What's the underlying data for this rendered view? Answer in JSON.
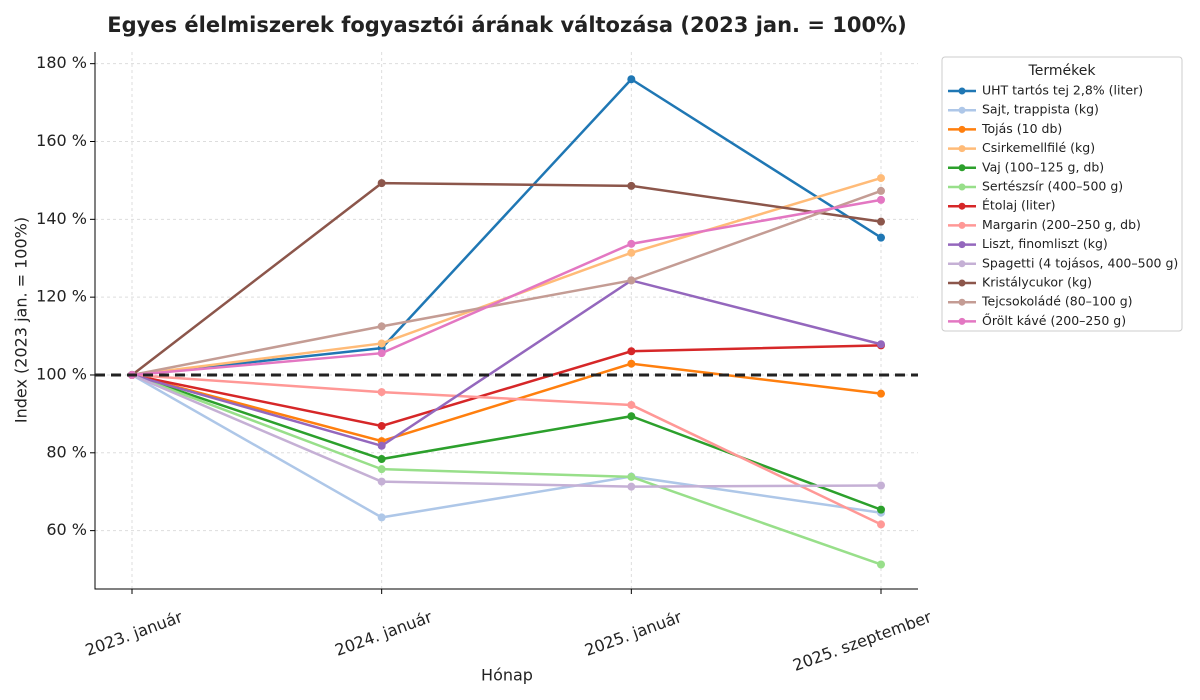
{
  "chart_data": {
    "type": "line",
    "title": "Egyes élelmiszerek fogyasztói árának változása (2023 jan. = 100%)",
    "x_label": "Hónap",
    "y_label": "Index (2023 jan. = 100%)",
    "categories": [
      "2023. január",
      "2024. január",
      "2025. január",
      "2025. szeptember"
    ],
    "ylim": [
      45,
      183
    ],
    "yticks": [
      {
        "value": 60,
        "label": "60 %"
      },
      {
        "value": 80,
        "label": "80 %"
      },
      {
        "value": 100,
        "label": "100 %"
      },
      {
        "value": 120,
        "label": "120 %"
      },
      {
        "value": 140,
        "label": "140 %"
      },
      {
        "value": 160,
        "label": "160 %"
      },
      {
        "value": 180,
        "label": "180 %"
      }
    ],
    "grid": true,
    "reference_line": 100,
    "legend_title": "Termékek",
    "legend_position": "outside right",
    "series": [
      {
        "name": "UHT tartós tej 2,8% (liter)",
        "color": "#1f77b4",
        "values": [
          100,
          106.9,
          176,
          135.3
        ]
      },
      {
        "name": "Sajt, trappista (kg)",
        "color": "#aec7e8",
        "values": [
          100,
          63.4,
          73.9,
          64.6
        ]
      },
      {
        "name": "Tojás (10 db)",
        "color": "#ff7f0e",
        "values": [
          100,
          83,
          102.9,
          95.2
        ]
      },
      {
        "name": "Csirkemellfilé (kg)",
        "color": "#ffbb78",
        "values": [
          100,
          108.1,
          131.4,
          150.6
        ]
      },
      {
        "name": "Vaj (100–125 g, db)",
        "color": "#2ca02c",
        "values": [
          100,
          78.4,
          89.4,
          65.4
        ]
      },
      {
        "name": "Sertészsír (400–500 g)",
        "color": "#98df8a",
        "values": [
          100,
          75.8,
          73.8,
          51.3
        ]
      },
      {
        "name": "Étolaj (liter)",
        "color": "#d62728",
        "values": [
          100,
          86.9,
          106.1,
          107.6
        ]
      },
      {
        "name": "Margarin (200–250 g, db)",
        "color": "#ff9896",
        "values": [
          100,
          95.6,
          92.3,
          61.6
        ]
      },
      {
        "name": "Liszt, finomliszt (kg)",
        "color": "#9467bd",
        "values": [
          100,
          81.8,
          124.3,
          107.9
        ]
      },
      {
        "name": "Spagetti (4 tojásos, 400–500 g)",
        "color": "#c5b0d5",
        "values": [
          100,
          72.6,
          71.3,
          71.6
        ]
      },
      {
        "name": "Kristálycukor (kg)",
        "color": "#8c564b",
        "values": [
          100,
          149.3,
          148.6,
          139.4
        ]
      },
      {
        "name": "Tejcsokoládé (80–100 g)",
        "color": "#c49c94",
        "values": [
          100,
          112.5,
          124.3,
          147.3
        ]
      },
      {
        "name": "Őrölt kávé (200–250 g)",
        "color": "#e377c2",
        "values": [
          100,
          105.6,
          133.7,
          145
        ]
      }
    ]
  }
}
